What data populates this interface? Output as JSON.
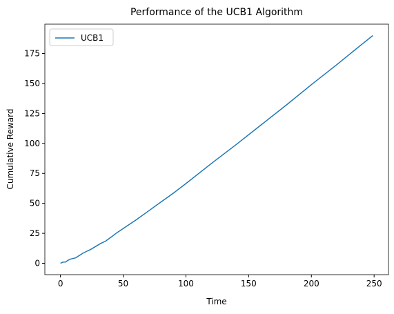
{
  "chart_data": {
    "type": "line",
    "title": "Performance of the UCB1 Algorithm",
    "x_label": "Time",
    "y_label": "Cumulative Reward",
    "x": [
      0,
      2,
      4,
      6,
      8,
      10,
      12,
      15,
      18,
      21,
      24,
      28,
      32,
      36,
      40,
      45,
      50,
      60,
      70,
      80,
      90,
      100,
      120,
      140,
      160,
      180,
      200,
      220,
      240,
      249
    ],
    "series": [
      {
        "name": "UCB1",
        "color": "#1f77b4",
        "values": [
          0,
          1,
          1,
          2.5,
          3.5,
          4,
          4.5,
          6.5,
          8.5,
          10,
          11.5,
          14,
          16.5,
          18.5,
          21.5,
          25.5,
          29,
          36,
          43.5,
          51,
          58.5,
          66.5,
          83,
          99,
          115.5,
          132,
          149,
          165.5,
          182.5,
          190
        ]
      }
    ],
    "xlim": [
      -12.45,
      261.45
    ],
    "ylim": [
      -9.5,
      199.5
    ],
    "xticks": [
      0,
      50,
      100,
      150,
      200,
      250
    ],
    "yticks": [
      0,
      25,
      50,
      75,
      100,
      125,
      150,
      175
    ],
    "legend": "upper left"
  }
}
